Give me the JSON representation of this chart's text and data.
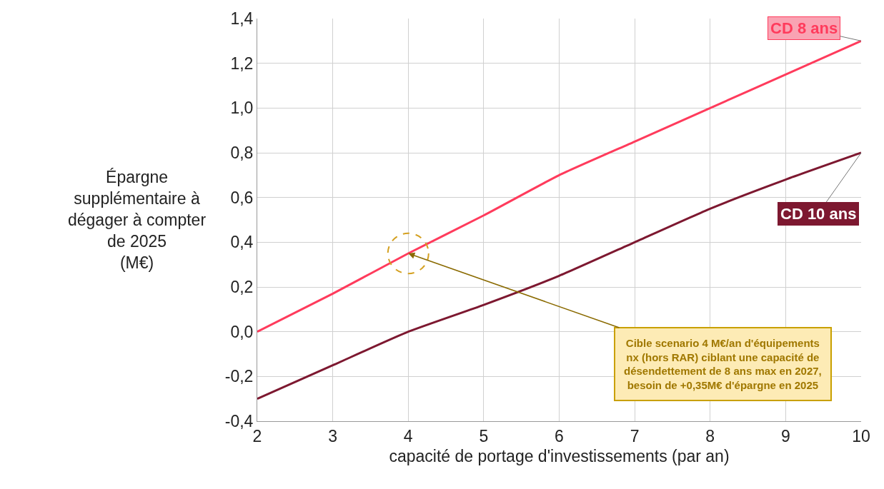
{
  "chart_data": {
    "type": "line",
    "xlabel": "capacité de portage d'investissements (par an)",
    "ylabel": "Épargne\nsupplémentaire à\ndégager à compter\nde 2025\n(M€)",
    "x": [
      2,
      3,
      4,
      5,
      6,
      7,
      8,
      9,
      10
    ],
    "series": [
      {
        "name": "CD 8 ans",
        "color": "#ff3b5c",
        "values": [
          0.0,
          0.17,
          0.35,
          0.52,
          0.7,
          0.85,
          1.0,
          1.15,
          1.3
        ]
      },
      {
        "name": "CD 10 ans",
        "color": "#7d1830",
        "values": [
          -0.3,
          -0.15,
          0.0,
          0.12,
          0.25,
          0.4,
          0.55,
          0.68,
          0.8
        ]
      }
    ],
    "annotations": [
      {
        "text": "Cible scenario 4 M€/an d'équipements\nnx (hors RAR) ciblant une capacité de\ndésendettement de 8 ans max en 2027,\nbesoin de +0,35M€ d'épargne en 2025",
        "x": 4,
        "y": 0.35
      }
    ],
    "xlim": [
      2,
      10
    ],
    "xticks": [
      2,
      3,
      4,
      5,
      6,
      7,
      8,
      9,
      10
    ],
    "ylim": [
      -0.4,
      1.4
    ],
    "yticks": [
      {
        "value": -0.4,
        "label": "-0,4"
      },
      {
        "value": -0.2,
        "label": "-0,2"
      },
      {
        "value": 0.0,
        "label": "0,0"
      },
      {
        "value": 0.2,
        "label": "0,2"
      },
      {
        "value": 0.4,
        "label": "0,4"
      },
      {
        "value": 0.6,
        "label": "0,6"
      },
      {
        "value": 0.8,
        "label": "0,8"
      },
      {
        "value": 1.0,
        "label": "1,0"
      },
      {
        "value": 1.2,
        "label": "1,2"
      },
      {
        "value": 1.4,
        "label": "1,4"
      }
    ],
    "grid": true,
    "legend": false,
    "marker": "none",
    "line_style": "solid"
  }
}
